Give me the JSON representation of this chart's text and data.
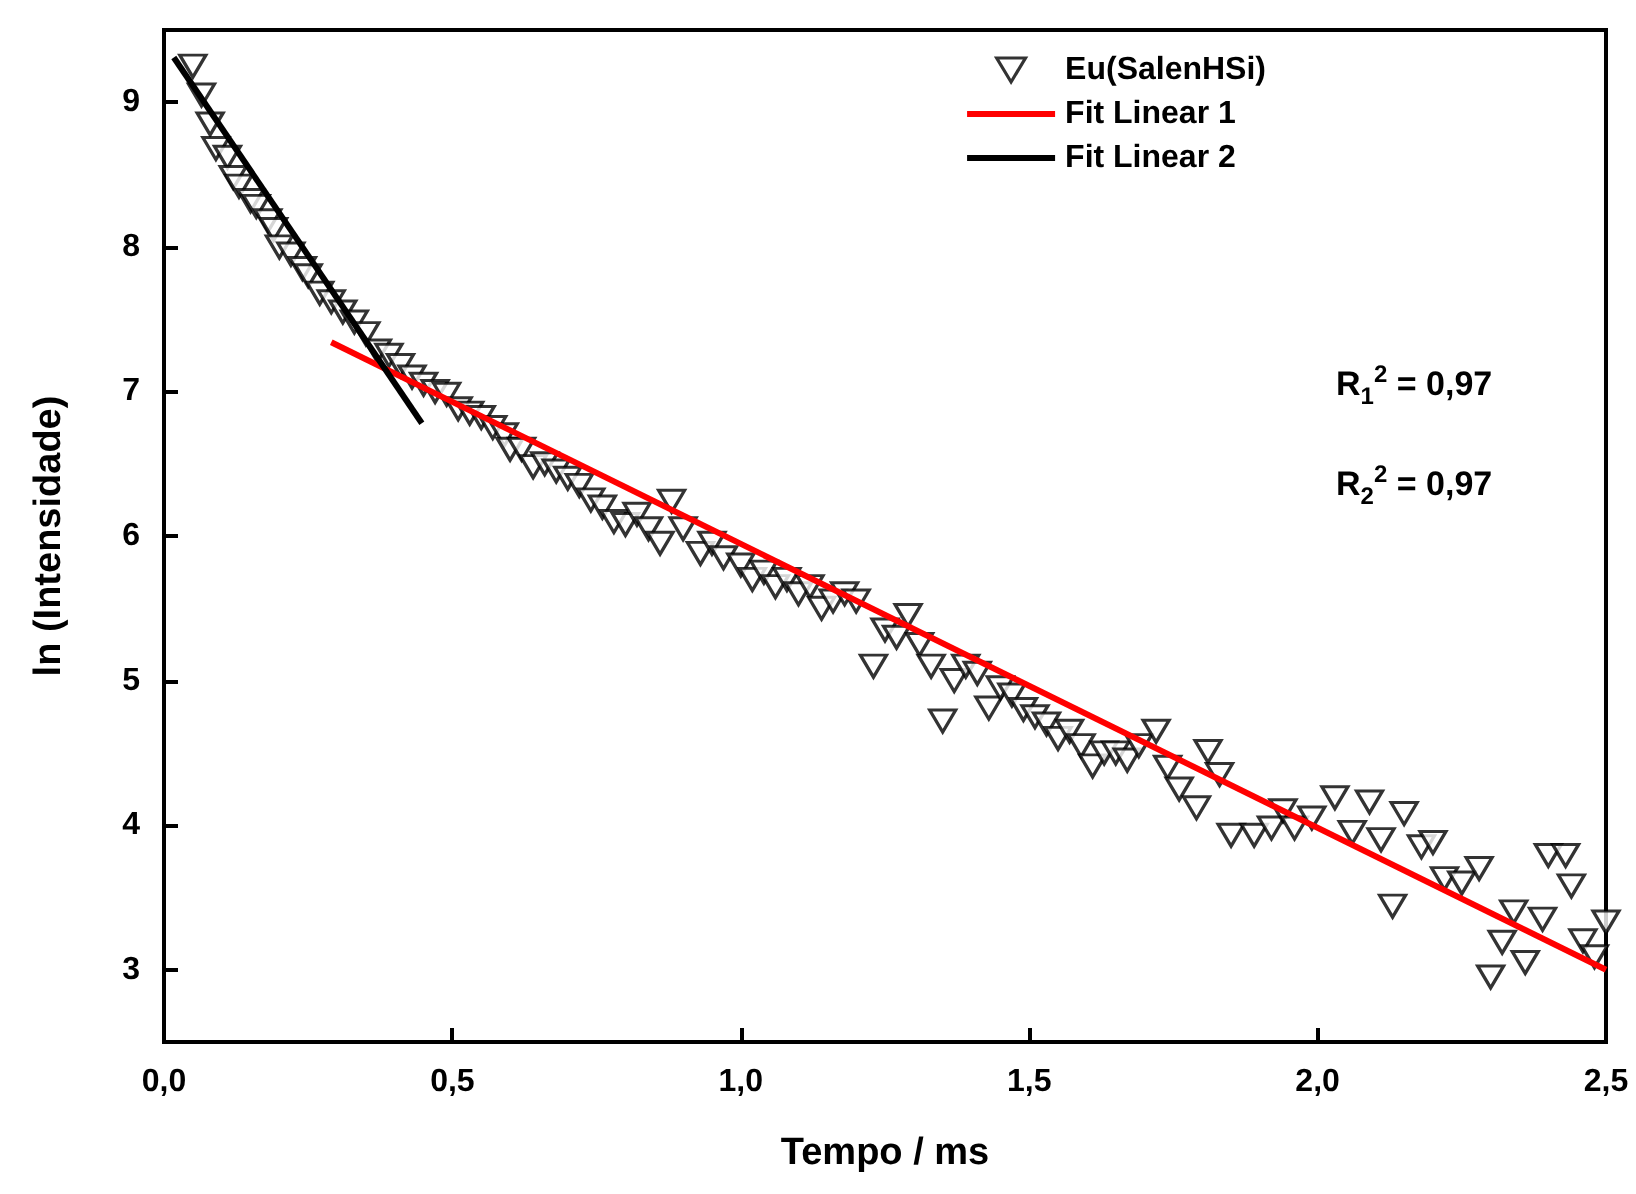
{
  "chart_data": {
    "type": "scatter",
    "xlabel": "Tempo / ms",
    "ylabel": "ln (Intensidade)",
    "xlim": [
      0,
      2.5
    ],
    "ylim": [
      2.5,
      9.5
    ],
    "xticks": [
      {
        "value": 0,
        "label": "0,0"
      },
      {
        "value": 0.5,
        "label": "0,5"
      },
      {
        "value": 1,
        "label": "1,0"
      },
      {
        "value": 1.5,
        "label": "1,5"
      },
      {
        "value": 2,
        "label": "2,0"
      },
      {
        "value": 2.5,
        "label": "2,5"
      }
    ],
    "yticks": [
      3,
      4,
      5,
      6,
      7,
      8,
      9
    ],
    "grid": false,
    "legend": "top right",
    "annotations": [
      "R$_{1}$$^{2}$ = 0,97",
      "R$_{2}$$^{2}$ = 0,97"
    ],
    "series": [
      {
        "name": "Eu(SalenHSi)",
        "type": "scatter",
        "marker": "triangle",
        "color": "#000000",
        "x": [
          0.05,
          0.065,
          0.08,
          0.09,
          0.11,
          0.12,
          0.13,
          0.15,
          0.16,
          0.18,
          0.19,
          0.2,
          0.22,
          0.24,
          0.25,
          0.27,
          0.29,
          0.31,
          0.33,
          0.35,
          0.37,
          0.39,
          0.41,
          0.43,
          0.45,
          0.47,
          0.49,
          0.51,
          0.53,
          0.55,
          0.57,
          0.59,
          0.6,
          0.62,
          0.64,
          0.66,
          0.68,
          0.7,
          0.72,
          0.74,
          0.76,
          0.78,
          0.8,
          0.82,
          0.84,
          0.86,
          0.88,
          0.9,
          0.93,
          0.95,
          0.97,
          1.0,
          1.02,
          1.04,
          1.06,
          1.08,
          1.1,
          1.12,
          1.14,
          1.16,
          1.18,
          1.2,
          1.23,
          1.25,
          1.27,
          1.29,
          1.31,
          1.33,
          1.35,
          1.37,
          1.39,
          1.41,
          1.43,
          1.45,
          1.47,
          1.49,
          1.51,
          1.53,
          1.55,
          1.57,
          1.59,
          1.61,
          1.63,
          1.65,
          1.67,
          1.69,
          1.72,
          1.74,
          1.76,
          1.79,
          1.81,
          1.83,
          1.85,
          1.89,
          1.92,
          1.94,
          1.96,
          1.99,
          2.03,
          2.06,
          2.09,
          2.11,
          2.13,
          2.15,
          2.18,
          2.2,
          2.22,
          2.25,
          2.28,
          2.3,
          2.32,
          2.34,
          2.36,
          2.39,
          2.4,
          2.43,
          2.44,
          2.46,
          2.48,
          2.5
        ],
        "values": [
          9.25,
          9.05,
          8.85,
          8.68,
          8.62,
          8.48,
          8.42,
          8.32,
          8.28,
          8.18,
          8.12,
          8.0,
          7.95,
          7.85,
          7.8,
          7.68,
          7.62,
          7.55,
          7.48,
          7.4,
          7.28,
          7.25,
          7.18,
          7.1,
          7.05,
          7.0,
          6.98,
          6.88,
          6.85,
          6.82,
          6.75,
          6.7,
          6.6,
          6.6,
          6.48,
          6.5,
          6.45,
          6.4,
          6.35,
          6.25,
          6.2,
          6.1,
          6.08,
          6.15,
          6.05,
          5.95,
          6.24,
          6.05,
          5.88,
          5.95,
          5.85,
          5.8,
          5.7,
          5.75,
          5.65,
          5.7,
          5.6,
          5.65,
          5.5,
          5.55,
          5.6,
          5.55,
          5.1,
          5.35,
          5.3,
          5.45,
          5.25,
          5.1,
          4.72,
          5.0,
          5.1,
          5.05,
          4.81,
          4.95,
          4.9,
          4.8,
          4.75,
          4.7,
          4.6,
          4.65,
          4.55,
          4.41,
          4.5,
          4.5,
          4.45,
          4.55,
          4.65,
          4.4,
          4.25,
          4.12,
          4.51,
          4.35,
          3.93,
          3.93,
          3.98,
          4.1,
          3.98,
          4.05,
          4.19,
          3.95,
          4.16,
          3.9,
          3.44,
          4.08,
          3.85,
          3.88,
          3.63,
          3.6,
          3.7,
          2.95,
          3.19,
          3.4,
          3.05,
          3.35,
          3.79,
          3.79,
          3.58,
          3.2,
          3.09,
          3.33
        ]
      },
      {
        "name": "Fit Linear 1",
        "type": "line",
        "marker": "none",
        "color": "#ff0000",
        "x": [
          0.29,
          2.5
        ],
        "values": [
          7.34,
          3.0
        ]
      },
      {
        "name": "Fit Linear 2",
        "type": "line",
        "marker": "none",
        "color": "#000000",
        "x": [
          0.017,
          0.447
        ],
        "values": [
          9.31,
          6.78
        ]
      }
    ]
  }
}
